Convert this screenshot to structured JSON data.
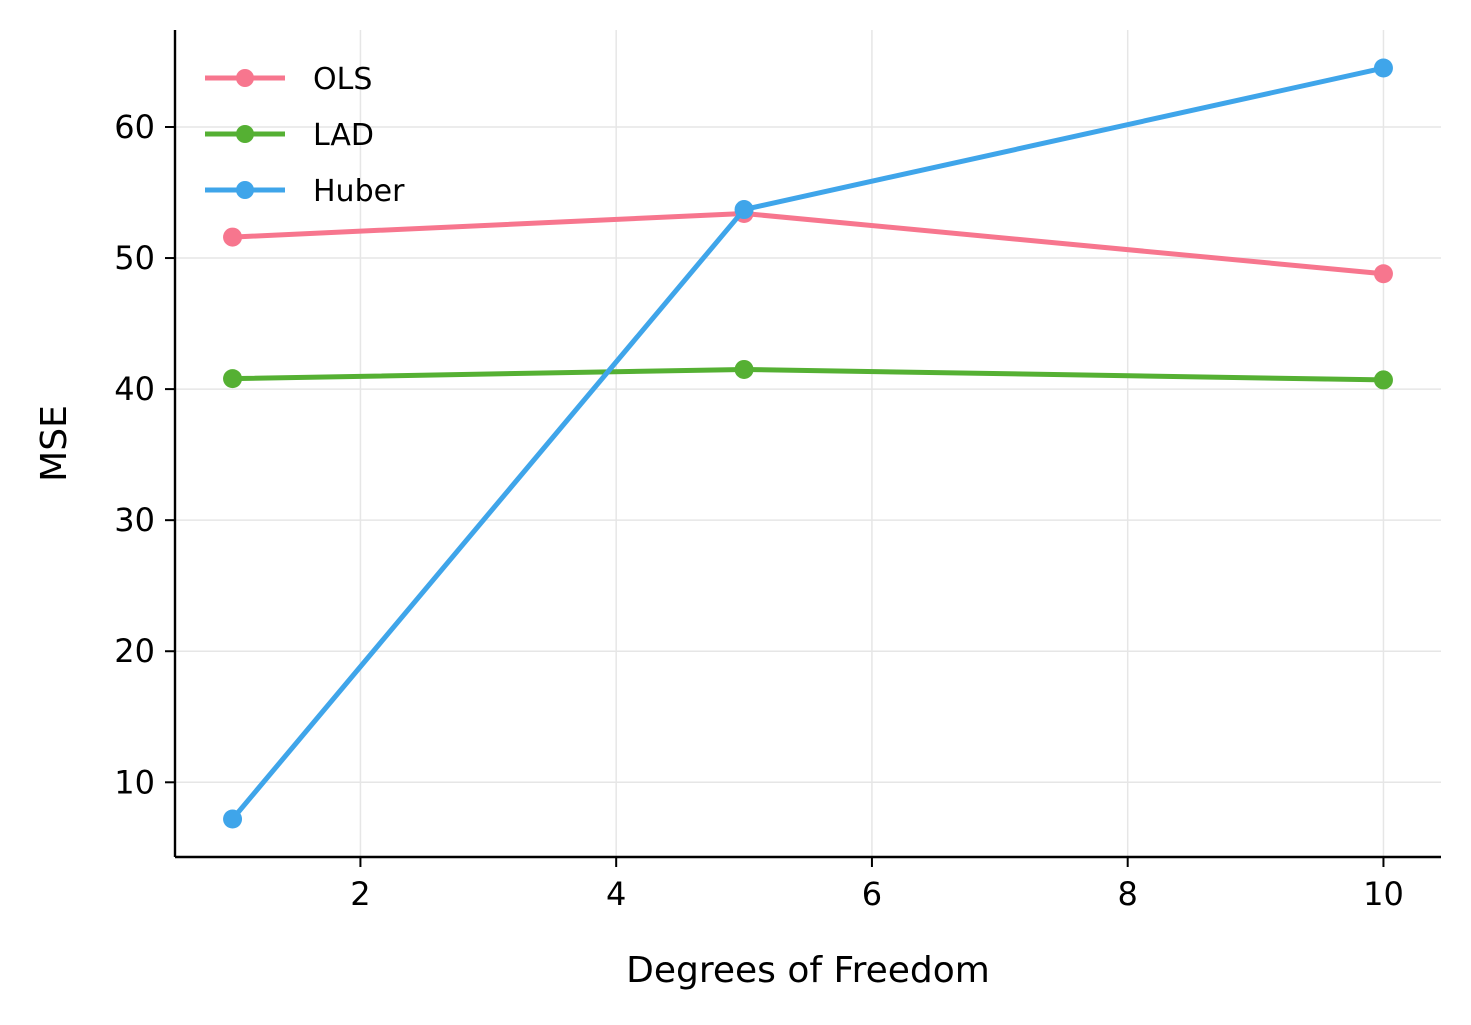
{
  "chart_data": {
    "type": "line",
    "title": "",
    "xlabel": "Degrees of Freedom",
    "ylabel": "MSE",
    "xlim": [
      0.55,
      10.45
    ],
    "ylim": [
      4.3,
      67.4
    ],
    "xticks": [
      2,
      4,
      6,
      8,
      10
    ],
    "yticks": [
      10,
      20,
      30,
      40,
      50,
      60
    ],
    "grid": true,
    "legend_position": "top-left",
    "x": [
      1,
      5,
      10
    ],
    "series": [
      {
        "name": "OLS",
        "color": "#f7768e",
        "values": [
          51.6,
          53.4,
          48.8
        ]
      },
      {
        "name": "LAD",
        "color": "#55b033",
        "values": [
          40.8,
          41.5,
          40.7
        ]
      },
      {
        "name": "Huber",
        "color": "#3fa5ea",
        "values": [
          7.2,
          53.7,
          64.5
        ]
      }
    ]
  }
}
